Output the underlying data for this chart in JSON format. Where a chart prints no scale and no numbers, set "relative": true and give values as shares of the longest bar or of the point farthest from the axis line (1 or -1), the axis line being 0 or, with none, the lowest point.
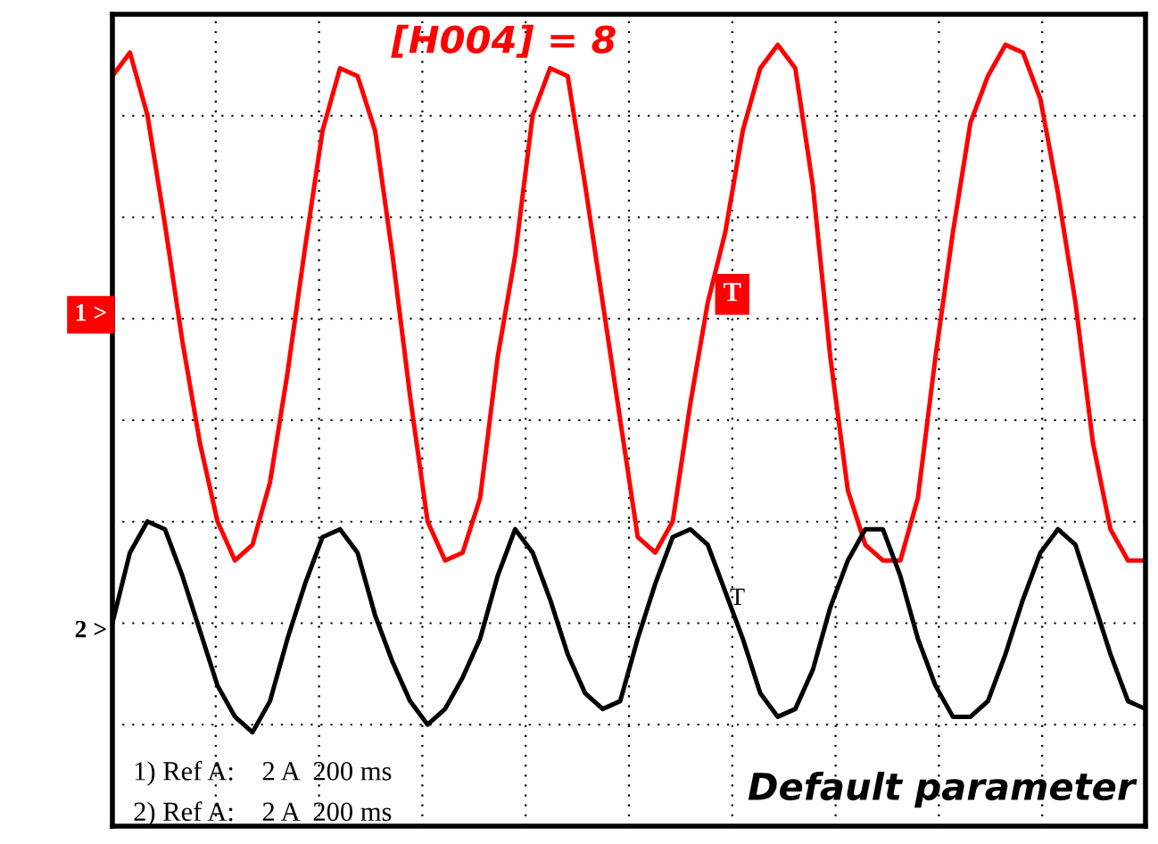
{
  "chart_data": {
    "type": "line",
    "relative": true,
    "tick_labels": false,
    "grid": true,
    "marker": "none",
    "line_style": "solid",
    "categories": [
      null,
      null,
      null,
      null,
      null,
      null,
      null,
      null,
      null,
      null,
      null,
      null,
      null,
      null,
      null,
      null,
      null,
      null,
      null,
      null,
      null,
      null,
      null,
      null,
      null,
      null,
      null,
      null,
      null,
      null,
      null,
      null,
      null,
      null,
      null,
      null,
      null,
      null,
      null,
      null,
      null,
      null,
      null,
      null,
      null,
      null,
      null,
      null,
      null,
      null,
      null,
      null,
      null,
      null,
      null,
      null,
      null,
      null,
      null,
      null
    ],
    "series": [
      {
        "color": "#ff0000",
        "values": [
          0.96,
          0.99,
          0.91,
          0.77,
          0.62,
          0.49,
          0.39,
          0.34,
          0.36,
          0.44,
          0.58,
          0.74,
          0.89,
          0.97,
          0.96,
          0.89,
          0.73,
          0.55,
          0.39,
          0.34,
          0.35,
          0.42,
          0.6,
          0.73,
          0.91,
          0.97,
          0.96,
          0.82,
          0.67,
          0.52,
          0.37,
          0.35,
          0.39,
          0.54,
          0.67,
          0.76,
          0.89,
          0.97,
          1.0,
          0.97,
          0.82,
          0.6,
          0.43,
          0.36,
          0.34,
          0.34,
          0.42,
          0.6,
          0.76,
          0.9,
          0.96,
          1.0,
          0.99,
          0.93,
          0.81,
          0.67,
          0.49,
          0.38,
          0.34,
          0.34
        ]
      },
      {
        "color": "#000000",
        "values": [
          0.26,
          0.35,
          0.39,
          0.38,
          0.32,
          0.25,
          0.18,
          0.14,
          0.12,
          0.16,
          0.24,
          0.31,
          0.37,
          0.38,
          0.35,
          0.27,
          0.21,
          0.16,
          0.13,
          0.15,
          0.19,
          0.24,
          0.32,
          0.38,
          0.35,
          0.29,
          0.22,
          0.17,
          0.15,
          0.16,
          0.24,
          0.31,
          0.37,
          0.38,
          0.36,
          0.3,
          0.24,
          0.17,
          0.14,
          0.15,
          0.2,
          0.28,
          0.34,
          0.38,
          0.38,
          0.32,
          0.24,
          0.18,
          0.14,
          0.14,
          0.16,
          0.22,
          0.29,
          0.35,
          0.38,
          0.36,
          0.29,
          0.22,
          0.16,
          0.15
        ]
      }
    ],
    "annotations": [
      "[H004] = 8",
      "Default parameter",
      "1) Ref A:    2 A  200 ms",
      "2) Ref A:    2 A  200 ms",
      "1 >",
      "2 >",
      "T",
      "T"
    ]
  }
}
